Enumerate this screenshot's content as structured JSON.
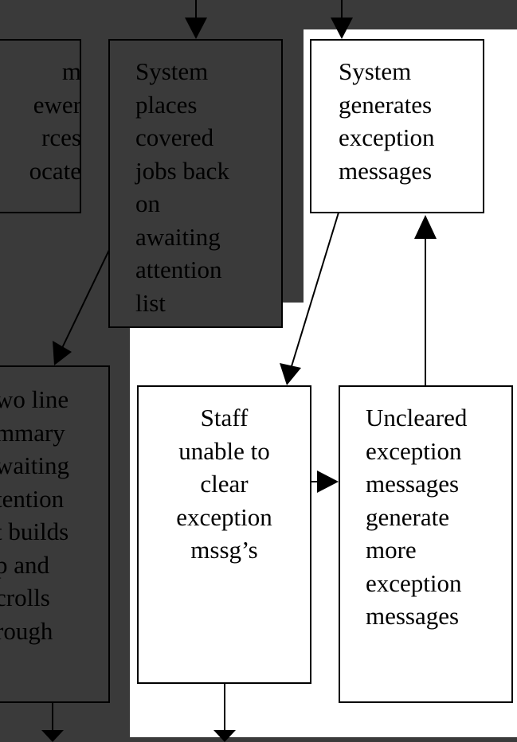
{
  "colors": {
    "background": "#3a3a3a",
    "highlight": "#ffffff",
    "stroke": "#000000"
  },
  "nodes": {
    "left_top": {
      "text": "m\newer\nrces\nocate"
    },
    "places_jobs": {
      "text": "System\nplaces\ncovered\njobs back\non\nawaiting\nattention\nlist"
    },
    "generates_msgs": {
      "text": "System\ngenerates\nexception\nmessages"
    },
    "left_bottom": {
      "text": "wo line\nmmary\nwaiting\ntention\nt builds\np and\ncrolls\nrough"
    },
    "staff_unable": {
      "text": "Staff\nunable to\nclear\nexception\nmssg’s"
    },
    "uncleared": {
      "text": "Uncleared\nexception\nmessages\ngenerate\nmore\nexception\nmessages"
    }
  },
  "edges": [
    {
      "from": "above",
      "to": "places_jobs"
    },
    {
      "from": "above",
      "to": "generates_msgs"
    },
    {
      "from": "places_jobs",
      "to": "left_bottom"
    },
    {
      "from": "generates_msgs",
      "to": "staff_unable"
    },
    {
      "from": "staff_unable",
      "to": "uncleared"
    },
    {
      "from": "uncleared",
      "to": "generates_msgs"
    },
    {
      "from": "left_bottom",
      "to": "below"
    },
    {
      "from": "staff_unable",
      "to": "below"
    }
  ]
}
